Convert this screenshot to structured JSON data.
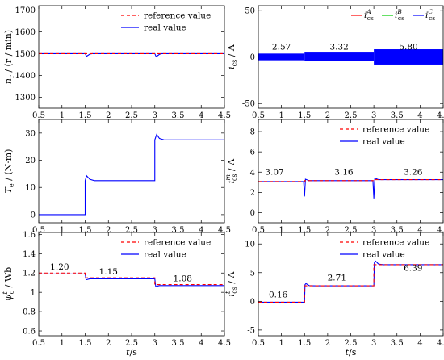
{
  "chart_data": [
    {
      "id": "speed",
      "type": "line",
      "ylabel": "n_r / (r / min)",
      "xlim": [
        0.5,
        4.5
      ],
      "ylim": [
        1250,
        1720
      ],
      "xticks": [
        "0.5",
        "1",
        "1.5",
        "2",
        "2.5",
        "3",
        "3.5",
        "4",
        "4.5"
      ],
      "yticks": [
        1300,
        1400,
        1500,
        1600,
        1700
      ],
      "legend_position": "top-right",
      "series": [
        {
          "name": "reference value",
          "color": "#ff0000",
          "dashed": true,
          "points": [
            [
              0.5,
              1500
            ],
            [
              4.5,
              1500
            ]
          ]
        },
        {
          "name": "real value",
          "color": "#0000ff",
          "dashed": false,
          "points": [
            [
              0.5,
              1500
            ],
            [
              1.5,
              1500
            ],
            [
              1.53,
              1488
            ],
            [
              1.6,
              1498
            ],
            [
              1.65,
              1500
            ],
            [
              3.0,
              1500
            ],
            [
              3.03,
              1486
            ],
            [
              3.1,
              1497
            ],
            [
              3.15,
              1500
            ],
            [
              4.5,
              1500
            ]
          ]
        }
      ],
      "annotations": []
    },
    {
      "id": "stator_current",
      "type": "line",
      "ylabel": "i_cs / A",
      "xlim": [
        0.5,
        4.5
      ],
      "ylim": [
        -55,
        55
      ],
      "xticks": [
        "0.5",
        "1",
        "1.5",
        "2",
        "2.5",
        "3",
        "3.5",
        "4",
        "4.5"
      ],
      "yticks": [
        -50,
        0,
        50
      ],
      "legend_position": "top-right",
      "series": [
        {
          "name": "i_cs^A",
          "color": "#ff0000",
          "dashed": false,
          "points": []
        },
        {
          "name": "i_cs^B",
          "color": "#00cc00",
          "dashed": false,
          "points": []
        },
        {
          "name": "i_cs^C",
          "color": "#0000ff",
          "dashed": false,
          "bands": [
            [
              0.5,
              1.5,
              3.6
            ],
            [
              1.5,
              3.0,
              4.7
            ],
            [
              3.0,
              4.5,
              8.2
            ]
          ]
        }
      ],
      "annotations": [
        {
          "text": "2.57",
          "x": 1.0,
          "y": 8
        },
        {
          "text": "3.32",
          "x": 2.25,
          "y": 8
        },
        {
          "text": "5.80",
          "x": 3.75,
          "y": 8
        }
      ]
    },
    {
      "id": "torque",
      "type": "line",
      "ylabel": "T_e / (N·m)",
      "xlim": [
        0.5,
        4.5
      ],
      "ylim": [
        -3,
        35
      ],
      "xticks": [
        "0.5",
        "1",
        "1.5",
        "2",
        "2.5",
        "3",
        "3.5",
        "4",
        "4.5"
      ],
      "yticks": [
        0,
        10,
        20,
        30
      ],
      "legend_position": "none",
      "series": [
        {
          "name": "real value",
          "color": "#0000ff",
          "dashed": false,
          "points": [
            [
              0.5,
              0
            ],
            [
              1.5,
              0
            ],
            [
              1.5,
              12.5
            ],
            [
              1.53,
              14.3
            ],
            [
              1.6,
              13.0
            ],
            [
              1.7,
              12.5
            ],
            [
              3.0,
              12.5
            ],
            [
              3.0,
              27.5
            ],
            [
              3.04,
              29.5
            ],
            [
              3.1,
              28.0
            ],
            [
              3.2,
              27.5
            ],
            [
              4.5,
              27.5
            ]
          ]
        }
      ],
      "annotations": []
    },
    {
      "id": "excitation_current",
      "type": "line",
      "ylabel": "i_cs^m / A",
      "xlim": [
        0.5,
        4.5
      ],
      "ylim": [
        -1,
        9.2
      ],
      "xticks": [
        "0.5",
        "1",
        "1.5",
        "2",
        "2.5",
        "3",
        "3.5",
        "4",
        "4.5"
      ],
      "yticks": [
        0,
        2,
        4,
        6,
        8
      ],
      "legend_position": "top-right",
      "series": [
        {
          "name": "reference value",
          "color": "#ff0000",
          "dashed": true,
          "points": [
            [
              0.5,
              3.07
            ],
            [
              1.5,
              3.07
            ],
            [
              1.5,
              3.16
            ],
            [
              3.0,
              3.16
            ],
            [
              3.0,
              3.26
            ],
            [
              4.5,
              3.26
            ]
          ]
        },
        {
          "name": "real value",
          "color": "#0000ff",
          "dashed": false,
          "points": [
            [
              0.5,
              3.07
            ],
            [
              1.48,
              3.07
            ],
            [
              1.5,
              1.6
            ],
            [
              1.52,
              3.3
            ],
            [
              1.6,
              3.16
            ],
            [
              2.98,
              3.16
            ],
            [
              3.0,
              1.4
            ],
            [
              3.02,
              3.4
            ],
            [
              3.1,
              3.26
            ],
            [
              4.5,
              3.26
            ]
          ]
        }
      ],
      "annotations": [
        {
          "text": "3.07",
          "x": 0.85,
          "y": 3.75
        },
        {
          "text": "3.16",
          "x": 2.35,
          "y": 3.75
        },
        {
          "text": "3.26",
          "x": 3.85,
          "y": 3.75
        }
      ]
    },
    {
      "id": "flux",
      "type": "line",
      "ylabel": "ψ_c^t / Wb",
      "xlim": [
        0.5,
        4.5
      ],
      "ylim": [
        0.55,
        1.62
      ],
      "xticks": [
        "0.5",
        "1",
        "1.5",
        "2",
        "2.5",
        "3",
        "3.5",
        "4",
        "4.5"
      ],
      "yticks": [
        0.6,
        0.8,
        1.0,
        1.2,
        1.4,
        1.6
      ],
      "ytick_labels": [
        "0.6",
        "0.8",
        "1",
        "1.2",
        "1.4",
        "1.6"
      ],
      "legend_position": "top-right",
      "series": [
        {
          "name": "reference value",
          "color": "#ff0000",
          "dashed": true,
          "points": [
            [
              0.5,
              1.2
            ],
            [
              1.5,
              1.2
            ],
            [
              1.5,
              1.15
            ],
            [
              3.0,
              1.15
            ],
            [
              3.0,
              1.08
            ],
            [
              4.5,
              1.08
            ]
          ]
        },
        {
          "name": "real value",
          "color": "#0000ff",
          "dashed": false,
          "points": [
            [
              0.5,
              1.19
            ],
            [
              1.5,
              1.19
            ],
            [
              1.52,
              1.13
            ],
            [
              1.6,
              1.14
            ],
            [
              3.0,
              1.14
            ],
            [
              3.02,
              1.06
            ],
            [
              3.1,
              1.07
            ],
            [
              4.5,
              1.07
            ]
          ]
        }
      ],
      "annotations": [
        {
          "text": "1.20",
          "x": 0.95,
          "y": 1.235
        },
        {
          "text": "1.15",
          "x": 2.0,
          "y": 1.185
        },
        {
          "text": "1.08",
          "x": 3.6,
          "y": 1.115
        }
      ]
    },
    {
      "id": "torque_current",
      "type": "line",
      "ylabel": "i_cs^t / A",
      "xlim": [
        0.5,
        4.5
      ],
      "ylim": [
        -6,
        12
      ],
      "xticks": [
        "0.5",
        "1",
        "1.5",
        "2",
        "2.5",
        "3",
        "3.5",
        "4",
        "4.5"
      ],
      "yticks": [
        -5,
        0,
        5,
        10
      ],
      "legend_position": "top-right",
      "series": [
        {
          "name": "reference value",
          "color": "#ff0000",
          "dashed": true,
          "points": [
            [
              0.5,
              -0.16
            ],
            [
              1.5,
              -0.16
            ],
            [
              1.5,
              2.71
            ],
            [
              3.0,
              2.71
            ],
            [
              3.0,
              6.39
            ],
            [
              4.5,
              6.39
            ]
          ]
        },
        {
          "name": "real value",
          "color": "#0000ff",
          "dashed": false,
          "points": [
            [
              0.5,
              -0.16
            ],
            [
              1.5,
              -0.16
            ],
            [
              1.51,
              2.9
            ],
            [
              1.53,
              3.1
            ],
            [
              1.6,
              2.75
            ],
            [
              1.7,
              2.71
            ],
            [
              3.0,
              2.71
            ],
            [
              3.01,
              6.7
            ],
            [
              3.04,
              7.0
            ],
            [
              3.1,
              6.5
            ],
            [
              3.2,
              6.39
            ],
            [
              4.5,
              6.39
            ]
          ]
        }
      ],
      "annotations": [
        {
          "text": "-0.16",
          "x": 0.9,
          "y": 0.7
        },
        {
          "text": "2.71",
          "x": 2.2,
          "y": 3.6
        },
        {
          "text": "6.39",
          "x": 3.85,
          "y": 5.3
        }
      ]
    }
  ],
  "xlabel": "t/s"
}
